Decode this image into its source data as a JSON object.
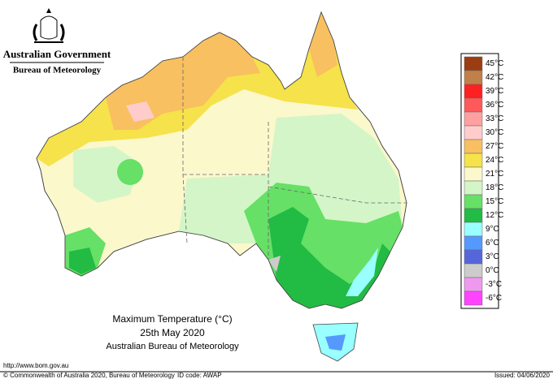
{
  "header": {
    "title": "Australian Government",
    "subtitle": "Bureau of Meteorology"
  },
  "map": {
    "title": "Maximum Temperature (°C)",
    "date": "25th May 2020",
    "source": "Australian Bureau of Meteorology"
  },
  "legend": [
    {
      "label": "45°C",
      "color": "#9b3d12"
    },
    {
      "label": "42°C",
      "color": "#c0804a"
    },
    {
      "label": "39°C",
      "color": "#ff2020"
    },
    {
      "label": "36°C",
      "color": "#ff5a5a"
    },
    {
      "label": "33°C",
      "color": "#ffa0a0"
    },
    {
      "label": "30°C",
      "color": "#ffcccc"
    },
    {
      "label": "27°C",
      "color": "#f8c060"
    },
    {
      "label": "24°C",
      "color": "#f6e24a"
    },
    {
      "label": "21°C",
      "color": "#fbf8cc"
    },
    {
      "label": "18°C",
      "color": "#d4f5c8"
    },
    {
      "label": "15°C",
      "color": "#66e066"
    },
    {
      "label": "12°C",
      "color": "#22bb44"
    },
    {
      "label": "9°C",
      "color": "#99ffff"
    },
    {
      "label": "6°C",
      "color": "#5599ff"
    },
    {
      "label": "3°C",
      "color": "#5566dd"
    },
    {
      "label": "0°C",
      "color": "#cccccc"
    },
    {
      "label": "-3°C",
      "color": "#ee99ee"
    },
    {
      "label": "-6°C",
      "color": "#ff44ff"
    }
  ],
  "footer": {
    "url": "http://www.bom.gov.au",
    "copyright": "© Commonwealth of Australia 2020, Bureau of Meteorology",
    "id": "ID code: AWAP",
    "issued": "Issued: 04/06/2020"
  }
}
